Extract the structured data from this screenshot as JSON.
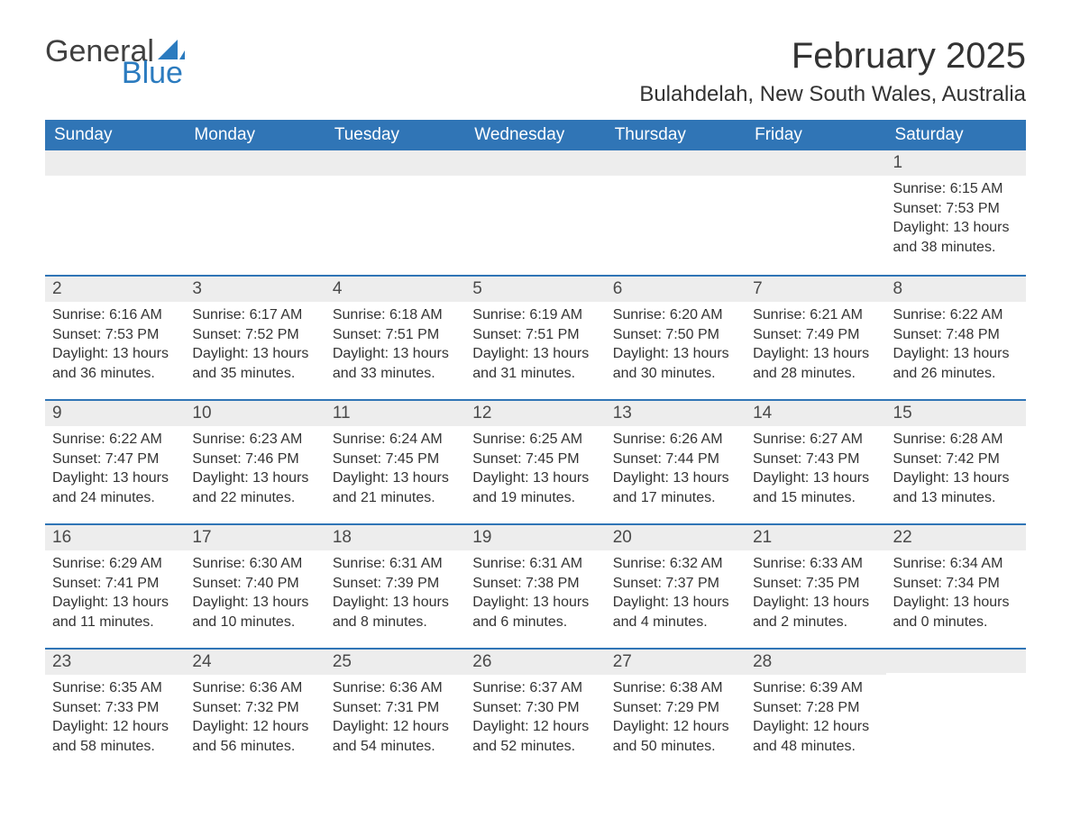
{
  "brand": {
    "name_part1": "General",
    "name_part2": "Blue",
    "text_color": "#404040",
    "accent_color": "#2b7bbf"
  },
  "title": {
    "month": "February 2025",
    "location": "Bulahdelah, New South Wales, Australia",
    "month_fontsize": 40,
    "location_fontsize": 24
  },
  "style": {
    "header_bg": "#3075b6",
    "header_text": "#ffffff",
    "daynum_bg": "#ededed",
    "row_border": "#3075b6",
    "body_text": "#333333",
    "body_fontsize": 16,
    "daynum_fontsize": 19,
    "header_fontsize": 19,
    "background_color": "#ffffff"
  },
  "daynames": [
    "Sunday",
    "Monday",
    "Tuesday",
    "Wednesday",
    "Thursday",
    "Friday",
    "Saturday"
  ],
  "weeks": [
    [
      null,
      null,
      null,
      null,
      null,
      null,
      {
        "n": "1",
        "sunrise": "6:15 AM",
        "sunset": "7:53 PM",
        "daylight": "13 hours and 38 minutes."
      }
    ],
    [
      {
        "n": "2",
        "sunrise": "6:16 AM",
        "sunset": "7:53 PM",
        "daylight": "13 hours and 36 minutes."
      },
      {
        "n": "3",
        "sunrise": "6:17 AM",
        "sunset": "7:52 PM",
        "daylight": "13 hours and 35 minutes."
      },
      {
        "n": "4",
        "sunrise": "6:18 AM",
        "sunset": "7:51 PM",
        "daylight": "13 hours and 33 minutes."
      },
      {
        "n": "5",
        "sunrise": "6:19 AM",
        "sunset": "7:51 PM",
        "daylight": "13 hours and 31 minutes."
      },
      {
        "n": "6",
        "sunrise": "6:20 AM",
        "sunset": "7:50 PM",
        "daylight": "13 hours and 30 minutes."
      },
      {
        "n": "7",
        "sunrise": "6:21 AM",
        "sunset": "7:49 PM",
        "daylight": "13 hours and 28 minutes."
      },
      {
        "n": "8",
        "sunrise": "6:22 AM",
        "sunset": "7:48 PM",
        "daylight": "13 hours and 26 minutes."
      }
    ],
    [
      {
        "n": "9",
        "sunrise": "6:22 AM",
        "sunset": "7:47 PM",
        "daylight": "13 hours and 24 minutes."
      },
      {
        "n": "10",
        "sunrise": "6:23 AM",
        "sunset": "7:46 PM",
        "daylight": "13 hours and 22 minutes."
      },
      {
        "n": "11",
        "sunrise": "6:24 AM",
        "sunset": "7:45 PM",
        "daylight": "13 hours and 21 minutes."
      },
      {
        "n": "12",
        "sunrise": "6:25 AM",
        "sunset": "7:45 PM",
        "daylight": "13 hours and 19 minutes."
      },
      {
        "n": "13",
        "sunrise": "6:26 AM",
        "sunset": "7:44 PM",
        "daylight": "13 hours and 17 minutes."
      },
      {
        "n": "14",
        "sunrise": "6:27 AM",
        "sunset": "7:43 PM",
        "daylight": "13 hours and 15 minutes."
      },
      {
        "n": "15",
        "sunrise": "6:28 AM",
        "sunset": "7:42 PM",
        "daylight": "13 hours and 13 minutes."
      }
    ],
    [
      {
        "n": "16",
        "sunrise": "6:29 AM",
        "sunset": "7:41 PM",
        "daylight": "13 hours and 11 minutes."
      },
      {
        "n": "17",
        "sunrise": "6:30 AM",
        "sunset": "7:40 PM",
        "daylight": "13 hours and 10 minutes."
      },
      {
        "n": "18",
        "sunrise": "6:31 AM",
        "sunset": "7:39 PM",
        "daylight": "13 hours and 8 minutes."
      },
      {
        "n": "19",
        "sunrise": "6:31 AM",
        "sunset": "7:38 PM",
        "daylight": "13 hours and 6 minutes."
      },
      {
        "n": "20",
        "sunrise": "6:32 AM",
        "sunset": "7:37 PM",
        "daylight": "13 hours and 4 minutes."
      },
      {
        "n": "21",
        "sunrise": "6:33 AM",
        "sunset": "7:35 PM",
        "daylight": "13 hours and 2 minutes."
      },
      {
        "n": "22",
        "sunrise": "6:34 AM",
        "sunset": "7:34 PM",
        "daylight": "13 hours and 0 minutes."
      }
    ],
    [
      {
        "n": "23",
        "sunrise": "6:35 AM",
        "sunset": "7:33 PM",
        "daylight": "12 hours and 58 minutes."
      },
      {
        "n": "24",
        "sunrise": "6:36 AM",
        "sunset": "7:32 PM",
        "daylight": "12 hours and 56 minutes."
      },
      {
        "n": "25",
        "sunrise": "6:36 AM",
        "sunset": "7:31 PM",
        "daylight": "12 hours and 54 minutes."
      },
      {
        "n": "26",
        "sunrise": "6:37 AM",
        "sunset": "7:30 PM",
        "daylight": "12 hours and 52 minutes."
      },
      {
        "n": "27",
        "sunrise": "6:38 AM",
        "sunset": "7:29 PM",
        "daylight": "12 hours and 50 minutes."
      },
      {
        "n": "28",
        "sunrise": "6:39 AM",
        "sunset": "7:28 PM",
        "daylight": "12 hours and 48 minutes."
      },
      null
    ]
  ],
  "labels": {
    "sunrise": "Sunrise:",
    "sunset": "Sunset:",
    "daylight": "Daylight:"
  }
}
